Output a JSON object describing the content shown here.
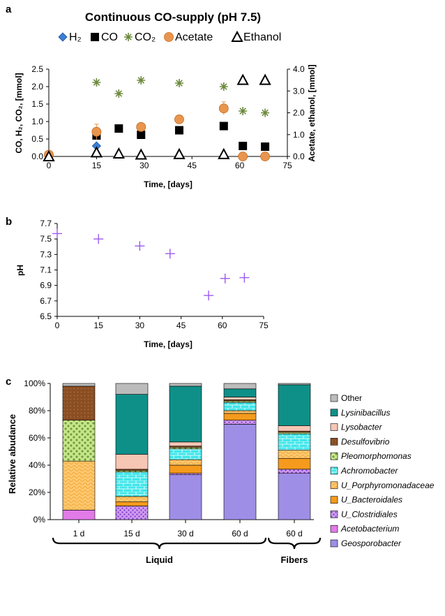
{
  "panel_labels": [
    "a",
    "b",
    "c"
  ],
  "chart_data": [
    {
      "type": "scatter",
      "title": "Continuous CO-supply (pH 7.5)",
      "xlabel": "Time, [days]",
      "ylabel": "CO, H₂, CO₂, [mmol]",
      "ylabel2": "Acetate, ethanol, [mmol]",
      "xlim": [
        0,
        75
      ],
      "ylim": [
        0,
        2.5
      ],
      "ylim2": [
        0,
        4.0
      ],
      "xticks": [
        "0",
        "15",
        "30",
        "45",
        "60",
        "75"
      ],
      "yticks": [
        "0.0",
        "0.5",
        "1.0",
        "1.5",
        "2.0",
        "2.5"
      ],
      "yticks2": [
        "0.0",
        "1.0",
        "2.0",
        "3.0",
        "4.0"
      ],
      "legend": [
        "H₂",
        "CO",
        "CO₂",
        "Acetate",
        "Ethanol"
      ],
      "series": [
        {
          "name": "H₂",
          "axis": "left",
          "color": "#3a7fd5",
          "marker": "diamond",
          "x": [
            0,
            15
          ],
          "y": [
            0.0,
            0.3
          ]
        },
        {
          "name": "CO",
          "axis": "left",
          "color": "#000000",
          "marker": "square",
          "x": [
            15,
            22,
            29,
            41,
            55,
            61,
            68
          ],
          "y": [
            0.6,
            0.8,
            0.62,
            0.75,
            0.87,
            0.3,
            0.28
          ]
        },
        {
          "name": "CO₂",
          "axis": "left",
          "color": "#6b8a3c",
          "marker": "asterisk",
          "x": [
            15,
            22,
            29,
            41,
            55,
            61,
            68
          ],
          "y": [
            2.12,
            1.8,
            2.18,
            2.1,
            2.0,
            1.3,
            1.25
          ]
        },
        {
          "name": "Acetate",
          "axis": "right",
          "color": "#e8964f",
          "marker": "circle",
          "x": [
            0,
            15,
            29,
            41,
            55,
            61,
            68
          ],
          "y": [
            0.08,
            1.13,
            1.35,
            1.7,
            2.2,
            0.0,
            0.0
          ],
          "err": [
            0.05,
            0.35,
            0.15,
            0.08,
            0.3,
            0.0,
            0.0
          ]
        },
        {
          "name": "Ethanol",
          "axis": "right",
          "color": "#000000",
          "marker": "triangle",
          "x": [
            0,
            15,
            22,
            29,
            41,
            55,
            61,
            68
          ],
          "y": [
            0.0,
            0.18,
            0.13,
            0.08,
            0.1,
            0.1,
            3.5,
            3.5
          ]
        }
      ]
    },
    {
      "type": "scatter",
      "xlabel": "Time, [days]",
      "ylabel": "pH",
      "xlim": [
        0,
        75
      ],
      "ylim": [
        6.5,
        7.7
      ],
      "xticks": [
        "0",
        "15",
        "30",
        "45",
        "60",
        "75"
      ],
      "yticks": [
        "6.5",
        "6.7",
        "6.9",
        "7.1",
        "7.3",
        "7.5",
        "7.7"
      ],
      "series": [
        {
          "name": "pH",
          "color": "#9b59f0",
          "marker": "plus",
          "x": [
            0,
            15,
            30,
            41,
            55,
            61,
            68
          ],
          "y": [
            7.57,
            7.5,
            7.41,
            7.31,
            6.77,
            6.99,
            7.0
          ]
        }
      ]
    },
    {
      "type": "bar",
      "stacked": true,
      "ylabel": "Relative abudance",
      "ylim": [
        0,
        100
      ],
      "yticks": [
        "0%",
        "20%",
        "40%",
        "60%",
        "80%",
        "100%"
      ],
      "categories": [
        "1 d",
        "15 d",
        "30 d",
        "60 d",
        "60 d"
      ],
      "groups": [
        {
          "label": "Liquid",
          "span": [
            0,
            3
          ]
        },
        {
          "label": "Fibers",
          "span": [
            4,
            4
          ]
        }
      ],
      "series": [
        {
          "name": "Geosporobacter",
          "italic": true,
          "color": "#9e8ee6",
          "values": [
            0,
            0,
            33,
            70,
            34
          ]
        },
        {
          "name": "Acetobacterium",
          "italic": true,
          "color": "#e27ae8",
          "values": [
            7,
            0,
            0,
            0,
            0
          ]
        },
        {
          "name": "U_Clostridiales",
          "italic": true,
          "color": "#e3c6f2",
          "values": [
            0,
            10,
            1,
            3,
            3
          ]
        },
        {
          "name": "U_Bacteroidales",
          "italic": true,
          "color": "#f59a1c",
          "values": [
            0,
            3,
            6,
            5,
            8
          ]
        },
        {
          "name": "U_Porphyromonadaceae",
          "italic": true,
          "color": "#fdc870",
          "values": [
            36,
            4,
            4,
            2,
            6
          ]
        },
        {
          "name": "Achromobacter",
          "italic": true,
          "color": "#3fe6ea",
          "values": [
            0,
            18,
            8,
            6,
            12
          ]
        },
        {
          "name": "Pleomorphomonas",
          "italic": true,
          "color": "#c8e68a",
          "values": [
            30,
            1,
            1,
            1,
            1
          ]
        },
        {
          "name": "Desulfovibrio",
          "italic": true,
          "color": "#8a4e23",
          "values": [
            25,
            1,
            1,
            1,
            1
          ]
        },
        {
          "name": "Lysobacter",
          "italic": true,
          "color": "#f6c6b4",
          "values": [
            0,
            11,
            3,
            2,
            4
          ]
        },
        {
          "name": "Lysinibacillus",
          "italic": true,
          "color": "#0e9089",
          "values": [
            0,
            44,
            41,
            6,
            30
          ]
        },
        {
          "name": "Other",
          "italic": false,
          "color": "#bcbcbc",
          "values": [
            2,
            8,
            2,
            4,
            1
          ]
        }
      ]
    }
  ]
}
